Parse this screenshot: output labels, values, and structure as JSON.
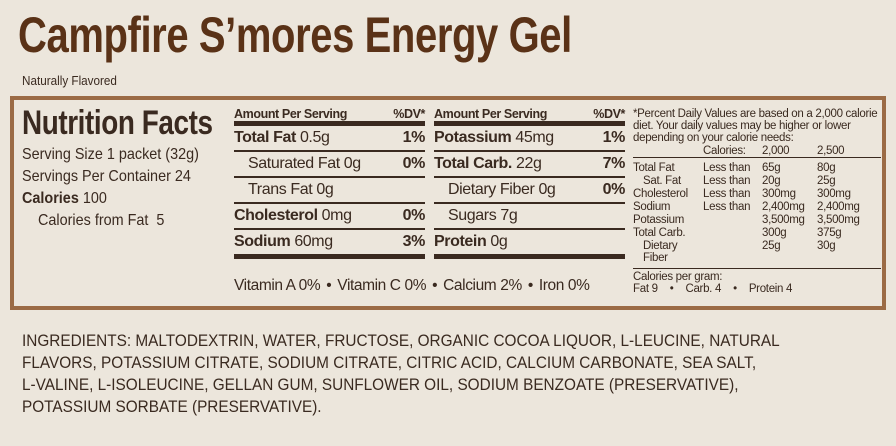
{
  "header": {
    "title": "Campfire S’mores Energy Gel",
    "subtitle": "Naturally Flavored"
  },
  "facts": {
    "heading": "Nutrition Facts",
    "serving_size": "Serving Size 1 packet (32g)",
    "servings_per_container": "Servings Per Container 24",
    "calories_label": "Calories",
    "calories_value": "100",
    "calories_from_fat": "Calories from Fat  5"
  },
  "columns": [
    {
      "amount_header": "Amount Per Serving",
      "dv_header": "%DV*",
      "rows": [
        {
          "label": "Total Fat",
          "amount": "0.5g",
          "dv": "1%",
          "bold": true
        },
        {
          "label": "Saturated Fat",
          "amount": "0g",
          "dv": "0%",
          "indent": true
        },
        {
          "label": "Trans Fat",
          "amount": "0g",
          "indent": true
        },
        {
          "label": "Cholesterol",
          "amount": "0mg",
          "dv": "0%",
          "bold": true
        },
        {
          "label": "Sodium",
          "amount": "60mg",
          "dv": "3%",
          "bold": true
        }
      ]
    },
    {
      "amount_header": "Amount Per Serving",
      "dv_header": "%DV*",
      "rows": [
        {
          "label": "Potassium",
          "amount": "45mg",
          "dv": "1%",
          "bold": true
        },
        {
          "label": "Total Carb.",
          "amount": "22g",
          "dv": "7%",
          "bold": true
        },
        {
          "label": "Dietary Fiber",
          "amount": "0g",
          "dv": "0%",
          "indent": true
        },
        {
          "label": "Sugars",
          "amount": "7g",
          "indent": true
        },
        {
          "label": "Protein",
          "amount": "0g",
          "bold": true
        }
      ]
    }
  ],
  "vitamins": [
    "Vitamin A 0%",
    "Vitamin C 0%",
    "Calcium 2%",
    "Iron 0%"
  ],
  "footnote": {
    "text": "*Percent Daily Values are based on a 2,000 calorie diet. Your daily values may be higher or lower depending on your calorie needs:",
    "table_header": [
      "Calories:",
      "2,000",
      "2,500"
    ],
    "table_rows": [
      [
        "Total Fat",
        "Less than",
        "65g",
        "80g"
      ],
      [
        "Sat. Fat",
        "Less than",
        "20g",
        "25g"
      ],
      [
        "Cholesterol",
        "Less than",
        "300mg",
        "300mg"
      ],
      [
        "Sodium",
        "Less than",
        "2,400mg",
        "2,400mg"
      ],
      [
        "Potassium",
        null,
        "3,500mg",
        "3,500mg"
      ],
      [
        "Total Carb.",
        null,
        "300g",
        "375g"
      ],
      [
        "Dietary Fiber",
        null,
        "25g",
        "30g"
      ]
    ],
    "per_gram_label": "Calories per gram:",
    "per_gram": [
      "Fat 9",
      "Carb. 4",
      "Protein 4"
    ]
  },
  "ingredients": {
    "lines": [
      "INGREDIENTS: MALTODEXTRIN, WATER, FRUCTOSE, ORGANIC COCOA LIQUOR, L-LEUCINE, NATURAL",
      "FLAVORS, POTASSIUM CITRATE, SODIUM CITRATE, CITRIC ACID, CALCIUM CARBONATE, SEA SALT,",
      "L-VALINE, L-ISOLEUCINE, GELLAN GUM, SUNFLOWER OIL, SODIUM BENZOATE (PRESERVATIVE),",
      "POTASSIUM SORBATE (PRESERVATIVE)."
    ]
  }
}
